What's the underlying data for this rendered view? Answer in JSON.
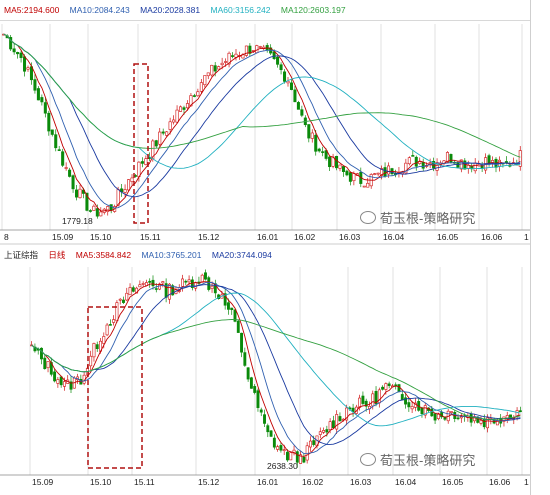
{
  "chart_data": [
    {
      "type": "candlestick",
      "legend": [
        {
          "label": "MA5:2194.600",
          "color": "#c00000"
        },
        {
          "label": "MA10:2084.243",
          "color": "#3060b0"
        },
        {
          "label": "MA20:2028.381",
          "color": "#1a3aa0"
        },
        {
          "label": "MA60:3156.242",
          "color": "#20b0c0"
        },
        {
          "label": "MA120:2603.197",
          "color": "#33a040"
        }
      ],
      "xticks": [
        "8",
        "15.09",
        "15.10",
        "15.11",
        "15.12",
        "16.01",
        "16.02",
        "16.03",
        "16.04",
        "16.05",
        "16.06",
        "1"
      ],
      "annotations": [
        {
          "text": "1779.18",
          "x": "15.09"
        }
      ],
      "price_path": [
        2900,
        2750,
        2500,
        2200,
        1950,
        1800,
        1830,
        2000,
        2150,
        2300,
        2450,
        2600,
        2700,
        2780,
        2820,
        2750,
        2620,
        2300,
        2150,
        2050,
        2000,
        2030,
        2080,
        2120,
        2110,
        2150,
        2100,
        2120,
        2080,
        2150
      ],
      "highlight_box": {
        "from": "15.10",
        "to": "15.11"
      }
    },
    {
      "type": "candlestick",
      "legend": [
        {
          "label": "上证综指",
          "color": "#222222"
        },
        {
          "label": "日线",
          "color": "#c00000"
        },
        {
          "label": "MA5:3584.842",
          "color": "#c00000"
        },
        {
          "label": "MA10:3765.201",
          "color": "#3060b0"
        },
        {
          "label": "MA20:3744.094",
          "color": "#1a3aa0"
        }
      ],
      "xticks": [
        "15.09",
        "15.10",
        "15.11",
        "15.12",
        "16.01",
        "16.02",
        "16.03",
        "16.04",
        "16.05",
        "16.06",
        "1"
      ],
      "annotations": [
        {
          "text": "2638.30",
          "x": "16.01"
        }
      ],
      "price_path": [
        3250,
        3150,
        3050,
        3100,
        3300,
        3450,
        3550,
        3600,
        3550,
        3580,
        3620,
        3550,
        3400,
        3050,
        2800,
        2700,
        2680,
        2780,
        2880,
        2950,
        2960,
        3050,
        3000,
        2950,
        2900,
        2920,
        2890,
        2870,
        2900,
        2930
      ],
      "highlight_box": {
        "from": "15.10",
        "to": "15.11"
      }
    }
  ],
  "watermark": "荀玉根-策略研究",
  "colors": {
    "up": "#d01010",
    "down": "#0a8a0a",
    "box": "#b01010",
    "grid": "#cccccc"
  }
}
